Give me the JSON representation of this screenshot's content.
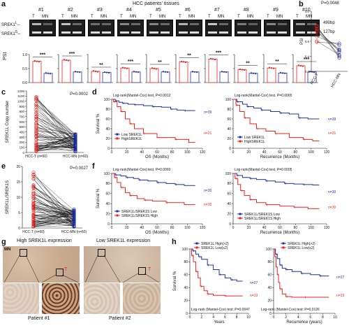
{
  "panel_labels": {
    "a": "a",
    "b": "b",
    "c": "c",
    "d": "d",
    "e": "e",
    "f": "f",
    "g": "g",
    "h": "h"
  },
  "panel_a": {
    "title": "HCC patients' tissues",
    "cases": [
      "#1",
      "#2",
      "#3",
      "#4",
      "#5",
      "#6",
      "#7",
      "#8",
      "#9",
      "#10"
    ],
    "lane_T": "T",
    "lane_MN": "MN",
    "gel_label": "SREK1",
    "bp_high": "490bp",
    "bp_low": "127bp",
    "ylabel": "PSI",
    "yticks": [
      "1.0",
      "0.5",
      "0.0"
    ],
    "sig": [
      "***",
      "***",
      "**",
      "***",
      "**",
      "**",
      "***",
      "**",
      "**",
      "***"
    ],
    "psi_T": [
      0.76,
      0.8,
      0.4,
      0.52,
      0.5,
      0.74,
      0.84,
      0.46,
      0.52,
      0.6
    ],
    "psi_MN": [
      0.33,
      0.38,
      0.36,
      0.38,
      0.38,
      0.38,
      0.38,
      0.33,
      0.34,
      0.38
    ]
  },
  "panel_b": {
    "p": "P=0.0048",
    "ylabel": "PSI",
    "xlabels": [
      "HCC-T",
      "HCC-MN"
    ],
    "yticks": [
      "1.0",
      "0.8",
      "0.6",
      "0.4",
      "0.2"
    ]
  },
  "panel_c": {
    "p": "P=0.0002",
    "ylabel": "SREK1L Copy number",
    "xlabels": [
      "HCC-T (n=60)",
      "HCC-MN (n=60)"
    ],
    "yticks": [
      "1200",
      "1100",
      "1000",
      "900",
      "800",
      "700",
      "600",
      "500",
      "400",
      "300",
      "200",
      "100",
      "0"
    ]
  },
  "panel_d": {
    "left": {
      "test": "Log-rank(Mantel-Cox) test, P=0.0012",
      "xlabel": "OS (Months)",
      "ylabel": "Survival %",
      "legend": [
        "Low SREK1L",
        "HighSREK1L"
      ],
      "n_high": "n=39",
      "n_low": "n=21",
      "xticks": [
        "0",
        "20",
        "40",
        "60",
        "80",
        "100",
        "120"
      ],
      "yticks": [
        "0",
        "20",
        "40",
        "60",
        "80",
        "100"
      ]
    },
    "right": {
      "test": "Log-rank(Mantel-Cox) test, P=0.0065",
      "xlabel": "Recurrence (Months)",
      "legend": [
        "Low SREK1L",
        "HighSREK1L"
      ],
      "n_high": "n=39",
      "n_low": "n=21",
      "xticks": [
        "0",
        "20",
        "40",
        "60",
        "80",
        "100",
        "120"
      ],
      "yticks": [
        "0",
        "20",
        "40",
        "60",
        "80",
        "100"
      ]
    }
  },
  "panel_e": {
    "p": "P=0.0027",
    "ylabel": "SREK1L/SREK1S",
    "xlabels": [
      "HCC-T (n=60)",
      "HCC-MN (n=60)"
    ],
    "yticks": [
      "20",
      "15",
      "10",
      "5",
      "0"
    ]
  },
  "panel_f": {
    "left": {
      "test": "Log-rank(Mantel-Cox) test, P=0.0060",
      "xlabel": "OS (Months)",
      "ylabel": "Survival %",
      "legend": [
        "SREK1L/SREK1S Low",
        "SREK1L/SREK1S High"
      ],
      "n_high": "n=30",
      "n_low": "n=30",
      "xticks": [
        "0",
        "20",
        "40",
        "60",
        "80",
        "100",
        "120"
      ],
      "yticks": [
        "0",
        "20",
        "40",
        "60",
        "80",
        "100"
      ]
    },
    "right": {
      "test": "Log-rank(Mantel-Cox) test, P=0.0005",
      "xlabel": "Recurrence (Months)",
      "legend": [
        "SREK1L/SREK1S Low",
        "SREK1L/SREK1S High"
      ],
      "n_high": "n=30",
      "n_low": "n=30",
      "xticks": [
        "0",
        "20",
        "40",
        "60",
        "80",
        "100",
        "120"
      ],
      "yticks": [
        "0",
        "20",
        "40",
        "60",
        "80",
        "100"
      ]
    }
  },
  "panel_g": {
    "title_high": "High SREK1L expression",
    "title_low": "Low SREK1L expression",
    "mn": "MN",
    "t": "T",
    "patient1": "Patient #1",
    "patient2": "Patient #2"
  },
  "panel_h": {
    "left": {
      "legend": [
        "SREK1L High(>2)",
        "SREK1L Low(≤2)"
      ],
      "test": "Log-rank (Mantel-Cox) test: P=0.0047",
      "xlabel": "Years",
      "ylabel": "Survival %",
      "n_low": "n=27",
      "n_high": "n=33",
      "xticks": [
        "0",
        "2",
        "4",
        "6",
        "8",
        "10"
      ],
      "yticks": [
        "0",
        "20",
        "40",
        "60",
        "80",
        "100"
      ]
    },
    "right": {
      "legend": [
        "SREK1L High(>2)",
        "SREK1L Low(≤2)"
      ],
      "test": "Log-rank (Mantel-Cox) test: P=0.0126",
      "xlabel": "Recurrence (years)",
      "n_low": "n=27",
      "n_high": "n=33",
      "xticks": [
        "0",
        "2",
        "4",
        "6",
        "8",
        "10"
      ],
      "yticks": [
        "0",
        "20",
        "40",
        "60",
        "80",
        "100"
      ]
    }
  },
  "colors": {
    "red": "#e8231f",
    "blue": "#1f2fa8"
  }
}
